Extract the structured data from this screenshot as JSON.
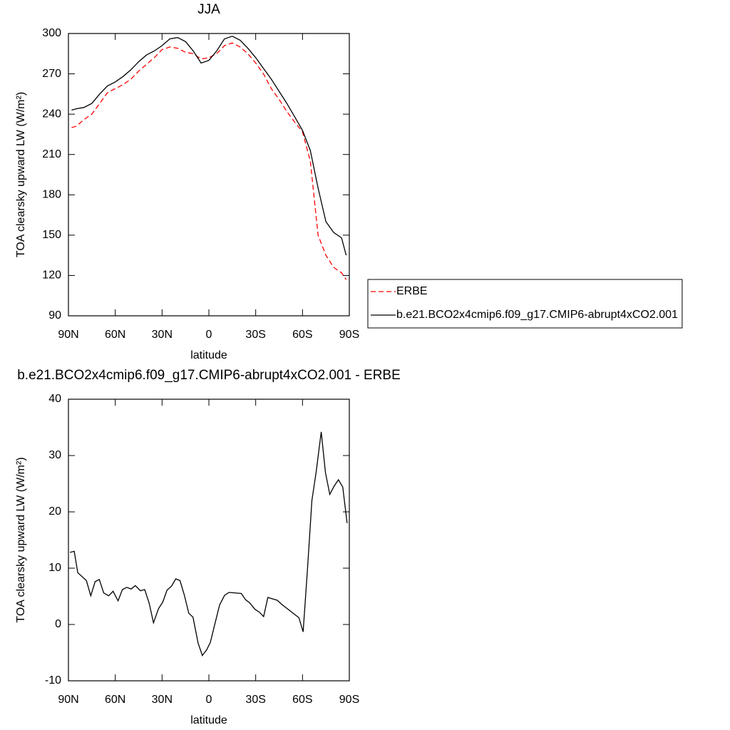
{
  "chart_data": [
    {
      "type": "line",
      "title": "JJA",
      "x_label": "latitude",
      "y_label": "TOA clearsky upward LW (W/m²)",
      "x": [
        88,
        85,
        80,
        75,
        70,
        65,
        60,
        55,
        50,
        45,
        40,
        35,
        30,
        25,
        20,
        15,
        10,
        5,
        0,
        -5,
        -10,
        -15,
        -20,
        -25,
        -30,
        -35,
        -40,
        -45,
        -50,
        -55,
        -60,
        -65,
        -70,
        -75,
        -80,
        -85,
        -88
      ],
      "series": [
        {
          "name": "ERBE",
          "color": "#ff0000",
          "line_style": "dashed",
          "values": [
            230,
            231,
            236,
            240,
            248,
            256,
            259,
            262,
            266,
            272,
            277,
            282,
            288,
            290,
            289,
            286,
            285,
            281,
            282,
            285,
            291,
            293,
            290,
            285,
            278,
            270,
            259,
            251,
            242,
            234,
            227,
            205,
            150,
            135,
            126,
            122,
            117
          ]
        },
        {
          "name": "b.e21.BCO2x4cmip6.f09_g17.CMIP6-abrupt4xCO2.001",
          "color": "#000000",
          "line_style": "solid",
          "values": [
            243,
            244,
            245,
            248,
            255,
            261,
            264,
            268,
            273,
            279,
            284,
            287,
            291,
            296,
            297,
            294,
            287,
            278,
            280,
            287,
            296,
            298,
            295,
            289,
            282,
            274,
            266,
            257,
            248,
            238,
            228,
            213,
            185,
            160,
            152,
            148,
            135
          ]
        }
      ],
      "xlim": [
        90,
        -90
      ],
      "ylim": [
        90,
        300
      ],
      "xticks": [
        {
          "value": 90,
          "label": "90N"
        },
        {
          "value": 60,
          "label": "60N"
        },
        {
          "value": 30,
          "label": "30N"
        },
        0,
        {
          "value": -30,
          "label": "30S"
        },
        {
          "value": -60,
          "label": "60S"
        },
        {
          "value": -90,
          "label": "90S"
        }
      ],
      "yticks": [
        90,
        120,
        150,
        180,
        210,
        240,
        270,
        300
      ],
      "legend": "right"
    },
    {
      "type": "line",
      "title": "b.e21.BCO2x4cmip6.f09_g17.CMIP6-abrupt4xCO2.001 - ERBE",
      "x_label": "latitude",
      "y_label": "TOA clearsky upward LW (W/m²)",
      "x": [
        89,
        86.3,
        84,
        78.5,
        75.7,
        72.9,
        70.2,
        67.4,
        64.2,
        61.4,
        58.2,
        55.4,
        52.6,
        49.9,
        47.1,
        43.9,
        41.1,
        38.3,
        35.5,
        32.3,
        29.5,
        26.8,
        24,
        21.2,
        18.5,
        15.7,
        12.9,
        10.2,
        6.9,
        4.2,
        1.4,
        -0.9,
        -4.1,
        -6.9,
        -10.1,
        -12.9,
        -20.8,
        -23.5,
        -26.3,
        -29.5,
        -32.3,
        -35.1,
        -37.8,
        -43.8,
        -46.6,
        -57.7,
        -60.4,
        -63.2,
        -66,
        -68.7,
        -72,
        -74.7,
        -77.5,
        -80.3,
        -83,
        -85.8,
        -88.6
      ],
      "color": "#000000",
      "values": [
        12.8,
        13,
        9.2,
        7.8,
        5.1,
        7.6,
        8,
        5.6,
        5.1,
        5.9,
        4.2,
        6.2,
        6.6,
        6.3,
        6.9,
        6,
        6.2,
        3.8,
        0.3,
        2.8,
        4,
        6.1,
        6.8,
        8.1,
        7.8,
        5.2,
        2,
        1.3,
        -3.3,
        -5.5,
        -4.5,
        -3.2,
        0.4,
        3.5,
        5.2,
        5.7,
        5.5,
        4.4,
        3.8,
        2.7,
        2.2,
        1.4,
        4.8,
        4.3,
        3.6,
        1.2,
        -1.3,
        9.8,
        22,
        27,
        34.2,
        27,
        23.1,
        24.6,
        25.7,
        24.4,
        18
      ],
      "xlim": [
        90,
        -90
      ],
      "ylim": [
        -10,
        40
      ],
      "xticks": [
        {
          "value": 90,
          "label": "90N"
        },
        {
          "value": 60,
          "label": "60N"
        },
        {
          "value": 30,
          "label": "30N"
        },
        0,
        {
          "value": -30,
          "label": "30S"
        },
        {
          "value": -60,
          "label": "60S"
        },
        {
          "value": -90,
          "label": "90S"
        }
      ],
      "yticks": [
        -10,
        0,
        10,
        20,
        30,
        40
      ]
    }
  ]
}
